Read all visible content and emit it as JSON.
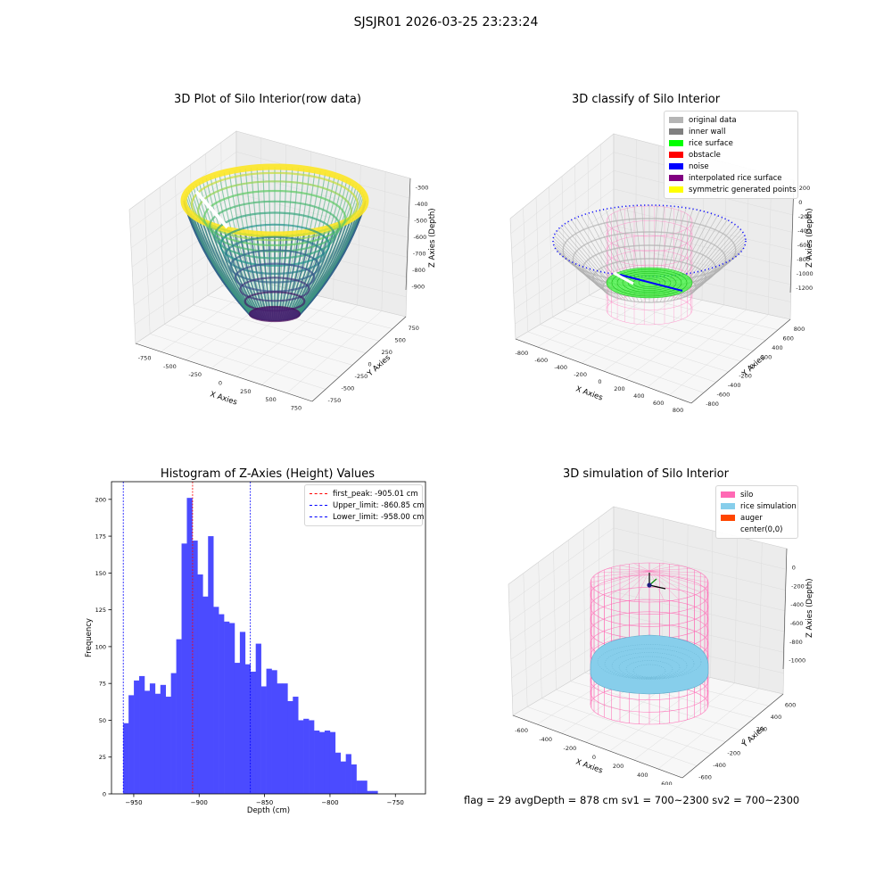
{
  "suptitle": "SJSJR01 2026-03-25 23:23:24",
  "status_line": "flag = 29  avgDepth = 878 cm  sv1 = 700~2300  sv2 = 700~2300",
  "chart_data": [
    {
      "type": "scatter",
      "title": "3D Plot of Silo Interior(row data)",
      "xlabel": "X Axies",
      "ylabel": "Y Axies",
      "zlabel": "Z Axies (Depth)",
      "xticks": [
        "-750",
        "-500",
        "-250",
        "0",
        "250",
        "500",
        "750"
      ],
      "yticks": [
        "-750",
        "-500",
        "-250",
        "0",
        "250",
        "500",
        "750"
      ],
      "zticks": [
        "-300",
        "-400",
        "-500",
        "-600",
        "-700",
        "-800",
        "-900"
      ],
      "colormap": "viridis"
    },
    {
      "type": "scatter",
      "title": "3D classify of Silo Interior",
      "xlabel": "X Axies",
      "ylabel": "Y Axies",
      "zlabel": "Z Axies (Depth)",
      "xticks": [
        "-800",
        "-600",
        "-400",
        "-200",
        "0",
        "200",
        "400",
        "600",
        "800"
      ],
      "yticks": [
        "-800",
        "-600",
        "-400",
        "-200",
        "0",
        "200",
        "400",
        "600",
        "800"
      ],
      "zticks": [
        "200",
        "0",
        "-200",
        "-400",
        "-600",
        "-800",
        "-1000",
        "-1200"
      ],
      "legend_position": "top-right",
      "legend": [
        {
          "label": "original data",
          "color": "#b5b5b5"
        },
        {
          "label": "inner wall",
          "color": "#808080"
        },
        {
          "label": "rice surface",
          "color": "#00ff00"
        },
        {
          "label": "obstacle",
          "color": "#ff0000"
        },
        {
          "label": "noise",
          "color": "#0000ff"
        },
        {
          "label": "interpolated rice surface",
          "color": "#800080"
        },
        {
          "label": "symmetric generated points",
          "color": "#ffff00"
        }
      ]
    },
    {
      "type": "bar",
      "title": "Histogram of Z-Axies (Height) Values",
      "xlabel": "Depth (cm)",
      "ylabel": "Frequency",
      "xlim": [
        -967,
        -727
      ],
      "ylim": [
        0,
        212
      ],
      "xticks": [
        -950,
        -900,
        -850,
        -800,
        -750
      ],
      "yticks": [
        0,
        25,
        50,
        75,
        100,
        125,
        150,
        175,
        200
      ],
      "bar_color": "#4b4bff",
      "bin_width": 4.05,
      "bin_start": -958.0,
      "bin_values": [
        48,
        67,
        77,
        80,
        70,
        75,
        68,
        74,
        66,
        82,
        105,
        170,
        201,
        172,
        149,
        134,
        175,
        127,
        122,
        117,
        116,
        89,
        110,
        88,
        83,
        102,
        73,
        85,
        84,
        75,
        75,
        63,
        66,
        50,
        51,
        50,
        43,
        42,
        43,
        42,
        28,
        22,
        27,
        20,
        9,
        9,
        2,
        2
      ],
      "vlines": [
        {
          "label": "first_peak: -905.01 cm",
          "x": -905.01,
          "color": "#ff0000"
        },
        {
          "label": "Upper_limit: -860.85 cm",
          "x": -860.85,
          "color": "#0000ff"
        },
        {
          "label": "Lower_limit: -958.00 cm",
          "x": -958.0,
          "color": "#0000ff"
        }
      ],
      "legend_position": "top-right"
    },
    {
      "type": "scatter",
      "title": "3D simulation of Silo Interior",
      "xlabel": "X Axies",
      "ylabel": "Y Axies",
      "zlabel": "Z Axies (Depth)",
      "xticks": [
        "-600",
        "-400",
        "-200",
        "0",
        "200",
        "400",
        "600"
      ],
      "yticks": [
        "-600",
        "-400",
        "-200",
        "0",
        "200",
        "400",
        "600"
      ],
      "zticks": [
        "0",
        "-200",
        "-400",
        "-600",
        "-800",
        "-1000"
      ],
      "legend_position": "top-right",
      "legend": [
        {
          "label": "silo",
          "color": "#ff69b4"
        },
        {
          "label": "rice simulation",
          "color": "#87ceeb"
        },
        {
          "label": "auger",
          "color": "#ff4500"
        },
        {
          "label": "center(0,0)",
          "color": "#ffffff"
        }
      ]
    }
  ]
}
